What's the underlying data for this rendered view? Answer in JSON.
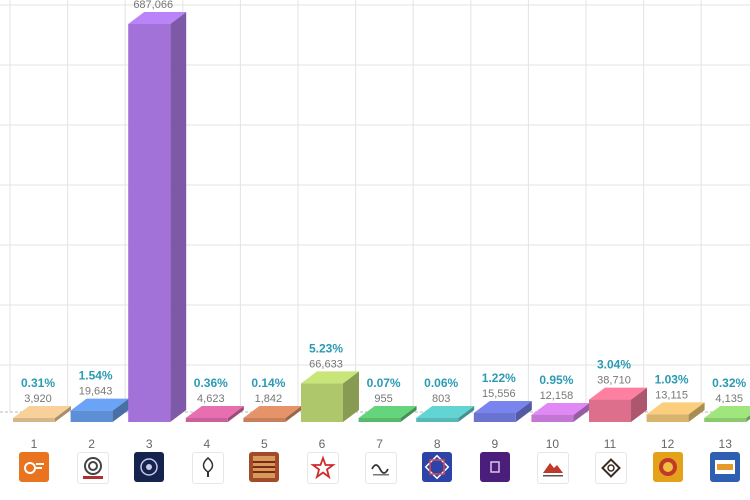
{
  "chart_data": {
    "type": "bar",
    "title": "",
    "xlabel": "",
    "ylabel": "",
    "ylim": [
      0,
      780000
    ],
    "grid": true,
    "categories": [
      "1",
      "2",
      "3",
      "4",
      "5",
      "6",
      "7",
      "8",
      "9",
      "10",
      "11",
      "12",
      "13"
    ],
    "values": [
      3920,
      19643,
      687066,
      4623,
      1842,
      66633,
      955,
      803,
      15556,
      12158,
      38710,
      13115,
      4135
    ],
    "value_labels": [
      "3,920",
      "19,643",
      "687,066",
      "4,623",
      "1,842",
      "66,633",
      "955",
      "803",
      "15,556",
      "12,158",
      "38,710",
      "13,115",
      "4,135"
    ],
    "percent_labels": [
      "0.31%",
      "1.54%",
      "",
      "0.36%",
      "0.14%",
      "5.23%",
      "0.07%",
      "0.06%",
      "1.22%",
      "0.95%",
      "3.04%",
      "1.03%",
      "0.32%"
    ],
    "colors": [
      "#d7b685",
      "#5d8ed6",
      "#a272d8",
      "#c9609a",
      "#c8805c",
      "#aec76a",
      "#58b96d",
      "#56b8b8",
      "#6a73d0",
      "#c376d3",
      "#dd6f8c",
      "#d9b36c",
      "#8cc86d"
    ]
  },
  "logos": [
    {
      "icon": "orange-square-logo-icon",
      "color": "#e9731e"
    },
    {
      "icon": "spiral-logo-icon",
      "color": "#ffffff"
    },
    {
      "icon": "navy-emblem-logo-icon",
      "color": "#15234f"
    },
    {
      "icon": "tree-logo-icon",
      "color": "#ffffff"
    },
    {
      "icon": "patterned-rug-logo-icon",
      "color": "#a24a2a"
    },
    {
      "icon": "red-star-logo-icon",
      "color": "#ffffff"
    },
    {
      "icon": "dark-script-logo-icon",
      "color": "#ffffff"
    },
    {
      "icon": "blue-star-logo-icon",
      "color": "#2c43a7"
    },
    {
      "icon": "purple-square-logo-icon",
      "color": "#4a1e7a"
    },
    {
      "icon": "mountain-logo-icon",
      "color": "#ffffff"
    },
    {
      "icon": "knot-logo-icon",
      "color": "#ffffff"
    },
    {
      "icon": "crest-logo-icon",
      "color": "#e4a21a"
    },
    {
      "icon": "blue-frame-logo-icon",
      "color": "#2f5fb0"
    }
  ]
}
